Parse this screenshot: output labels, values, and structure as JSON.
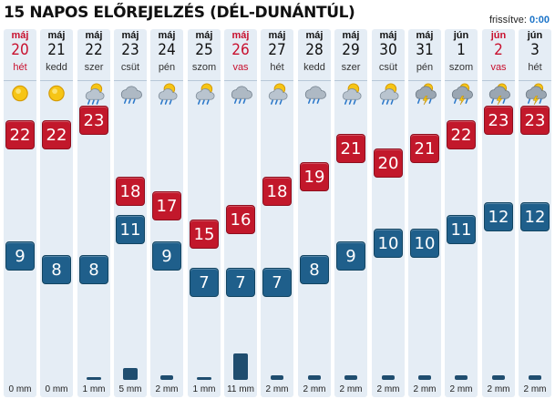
{
  "header": {
    "title": "15 NAPOS ELŐREJELZÉS (DÉL-DUNÁNTÚL)",
    "updated_label": "frissítve:",
    "updated_time": "0:00"
  },
  "days": [
    {
      "month": "máj",
      "day": "20",
      "dow": "hét",
      "red": true,
      "icon": "sun-icon",
      "max": 22,
      "min": 9,
      "precip": "0 mm",
      "precip_mm": 0
    },
    {
      "month": "máj",
      "day": "21",
      "dow": "kedd",
      "red": false,
      "icon": "sun-icon",
      "max": 22,
      "min": 8,
      "precip": "0 mm",
      "precip_mm": 0
    },
    {
      "month": "máj",
      "day": "22",
      "dow": "szer",
      "red": false,
      "icon": "rain-cloud-sun-icon",
      "max": 23,
      "min": 8,
      "precip": "1 mm",
      "precip_mm": 1
    },
    {
      "month": "máj",
      "day": "23",
      "dow": "csüt",
      "red": false,
      "icon": "rain-cloud-icon",
      "max": 18,
      "min": 11,
      "precip": "5 mm",
      "precip_mm": 5
    },
    {
      "month": "máj",
      "day": "24",
      "dow": "pén",
      "red": false,
      "icon": "rain-cloud-sun-icon",
      "max": 17,
      "min": 9,
      "precip": "2 mm",
      "precip_mm": 2
    },
    {
      "month": "máj",
      "day": "25",
      "dow": "szom",
      "red": false,
      "icon": "rain-cloud-sun-icon",
      "max": 15,
      "min": 7,
      "precip": "1 mm",
      "precip_mm": 1
    },
    {
      "month": "máj",
      "day": "26",
      "dow": "vas",
      "red": true,
      "icon": "rain-cloud-icon",
      "max": 16,
      "min": 7,
      "precip": "11 mm",
      "precip_mm": 11
    },
    {
      "month": "máj",
      "day": "27",
      "dow": "hét",
      "red": false,
      "icon": "rain-cloud-sun-icon",
      "max": 18,
      "min": 7,
      "precip": "2 mm",
      "precip_mm": 2
    },
    {
      "month": "máj",
      "day": "28",
      "dow": "kedd",
      "red": false,
      "icon": "rain-cloud-icon",
      "max": 19,
      "min": 8,
      "precip": "2 mm",
      "precip_mm": 2
    },
    {
      "month": "máj",
      "day": "29",
      "dow": "szer",
      "red": false,
      "icon": "rain-cloud-sun-icon",
      "max": 21,
      "min": 9,
      "precip": "2 mm",
      "precip_mm": 2
    },
    {
      "month": "máj",
      "day": "30",
      "dow": "csüt",
      "red": false,
      "icon": "rain-cloud-sun-icon",
      "max": 20,
      "min": 10,
      "precip": "2 mm",
      "precip_mm": 2
    },
    {
      "month": "máj",
      "day": "31",
      "dow": "pén",
      "red": false,
      "icon": "thunderstorm-icon",
      "max": 21,
      "min": 10,
      "precip": "2 mm",
      "precip_mm": 2
    },
    {
      "month": "jún",
      "day": "1",
      "dow": "szom",
      "red": false,
      "icon": "thunderstorm-icon",
      "max": 22,
      "min": 11,
      "precip": "2 mm",
      "precip_mm": 2
    },
    {
      "month": "jún",
      "day": "2",
      "dow": "vas",
      "red": true,
      "icon": "thunderstorm-icon",
      "max": 23,
      "min": 12,
      "precip": "2 mm",
      "precip_mm": 2
    },
    {
      "month": "jún",
      "day": "3",
      "dow": "hét",
      "red": false,
      "icon": "thunderstorm-icon",
      "max": 23,
      "min": 12,
      "precip": "2 mm",
      "precip_mm": 2
    }
  ],
  "colors": {
    "max_badge": "#c2182b",
    "min_badge": "#1f5f8b",
    "column_bg": "#e5edf5",
    "red_text": "#c8102e",
    "precip_bar": "#1f4d6f"
  }
}
